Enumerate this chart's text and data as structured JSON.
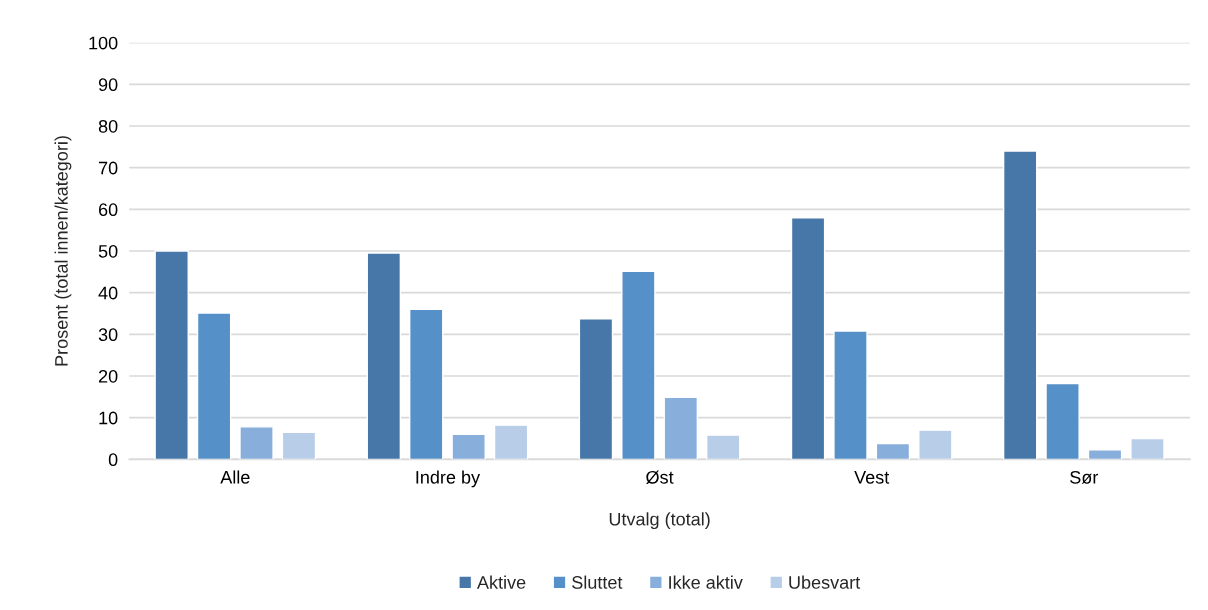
{
  "chart_data": {
    "type": "bar",
    "xlabel": "Utvalg (total)",
    "ylabel": "Prosent (total innen/kategori)",
    "categories": [
      "Alle",
      "Indre by",
      "Øst",
      "Vest",
      "Sør"
    ],
    "series": [
      {
        "name": "Aktive",
        "color": "#4677a8",
        "values": [
          50.0,
          49.5,
          33.7,
          58.0,
          74.0
        ]
      },
      {
        "name": "Sluttet",
        "color": "#5591c8",
        "values": [
          35.1,
          36.0,
          45.1,
          30.8,
          18.2
        ]
      },
      {
        "name": "Ikke aktiv",
        "color": "#88afdc",
        "values": [
          7.8,
          6.0,
          14.9,
          3.8,
          2.3
        ]
      },
      {
        "name": "Ubesvart",
        "color": "#b8cde8",
        "values": [
          6.5,
          8.2,
          5.8,
          7.0,
          5.0
        ]
      }
    ],
    "ylim": [
      0,
      100
    ],
    "yticks": [
      0,
      10,
      20,
      30,
      40,
      50,
      60,
      70,
      80,
      90,
      100
    ],
    "grid": "y",
    "legend": "bottom"
  }
}
